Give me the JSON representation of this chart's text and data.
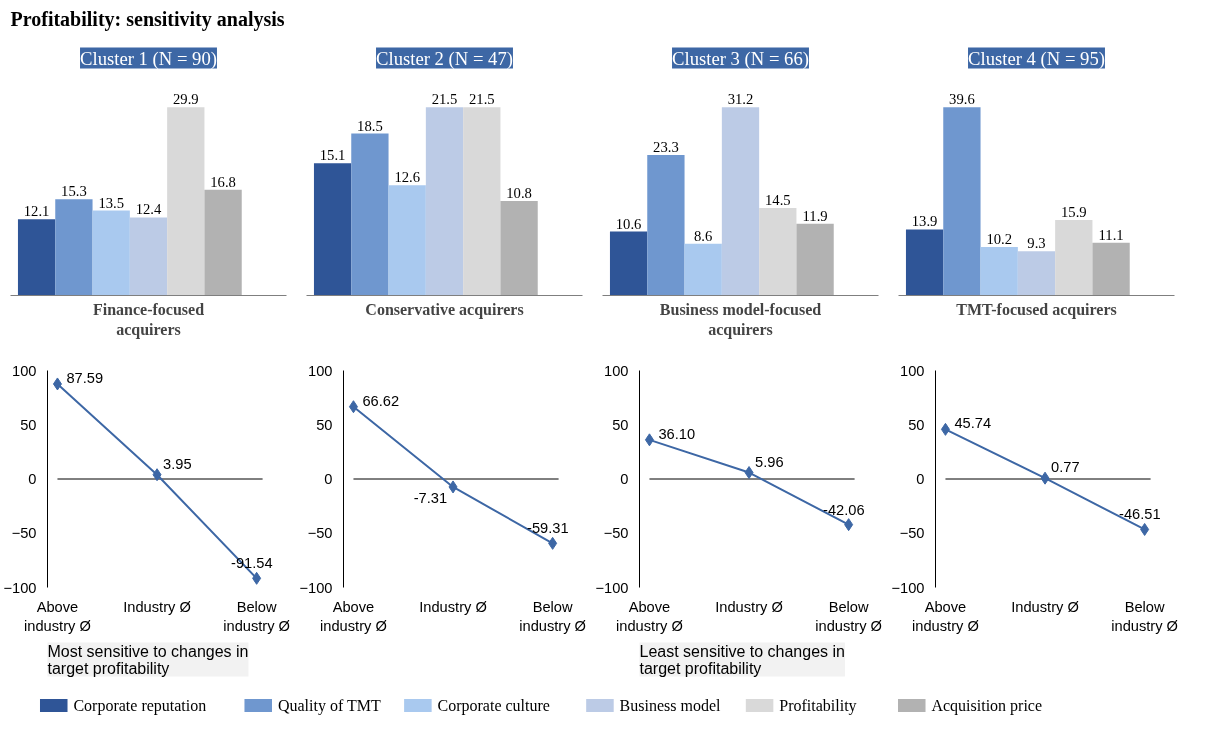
{
  "chart_data": [
    {
      "type": "other",
      "title": "Profitability: sensitivity analysis"
    },
    {
      "type": "bar",
      "title": "Cluster 1 (N = 90)",
      "xlabel": "Finance-focused acquirers",
      "categories": [
        null
      ],
      "data_labels": true,
      "legend": "bottom",
      "series": [
        {
          "name": "Corporate reputation",
          "color": "#2f5597",
          "values": [
            12.1
          ]
        },
        {
          "name": "Quality of TMT",
          "color": "#6f97cf",
          "values": [
            15.3
          ]
        },
        {
          "name": "Corporate culture",
          "color": "#a9c9ef",
          "values": [
            13.5
          ]
        },
        {
          "name": "Business model",
          "color": "#bccbe6",
          "values": [
            12.4
          ]
        },
        {
          "name": "Profitability",
          "color": "#d9d9d9",
          "values": [
            29.9
          ]
        },
        {
          "name": "Acquisition price",
          "color": "#b2b2b2",
          "values": [
            16.8
          ]
        }
      ]
    },
    {
      "type": "bar",
      "title": "Cluster 2 (N = 47)",
      "xlabel": "Conservative acquirers",
      "categories": [
        null
      ],
      "data_labels": true,
      "series": [
        {
          "color": "#2f5597",
          "values": [
            15.1
          ]
        },
        {
          "color": "#6f97cf",
          "values": [
            18.5
          ]
        },
        {
          "color": "#a9c9ef",
          "values": [
            12.6
          ]
        },
        {
          "color": "#bccbe6",
          "values": [
            21.5
          ]
        },
        {
          "color": "#d9d9d9",
          "values": [
            21.5
          ]
        },
        {
          "color": "#b2b2b2",
          "values": [
            10.8
          ]
        }
      ]
    },
    {
      "type": "bar",
      "title": "Cluster 3 (N = 66)",
      "xlabel": "Business model-focused acquirers",
      "categories": [
        null
      ],
      "data_labels": true,
      "series": [
        {
          "color": "#2f5597",
          "values": [
            10.6
          ]
        },
        {
          "color": "#6f97cf",
          "values": [
            23.3
          ]
        },
        {
          "color": "#a9c9ef",
          "values": [
            8.6
          ]
        },
        {
          "color": "#bccbe6",
          "values": [
            31.2
          ]
        },
        {
          "color": "#d9d9d9",
          "values": [
            14.5
          ]
        },
        {
          "color": "#b2b2b2",
          "values": [
            11.9
          ]
        }
      ]
    },
    {
      "type": "bar",
      "title": "Cluster 4 (N = 95)",
      "xlabel": "TMT-focused acquirers",
      "categories": [
        null
      ],
      "data_labels": true,
      "series": [
        {
          "color": "#2f5597",
          "values": [
            13.9
          ]
        },
        {
          "color": "#6f97cf",
          "values": [
            39.6
          ]
        },
        {
          "color": "#a9c9ef",
          "values": [
            10.2
          ]
        },
        {
          "color": "#bccbe6",
          "values": [
            9.3
          ]
        },
        {
          "color": "#d9d9d9",
          "values": [
            15.9
          ]
        },
        {
          "color": "#b2b2b2",
          "values": [
            11.1
          ]
        }
      ]
    },
    {
      "type": "line",
      "categories": [
        "Above industry Ø",
        "Industry Ø",
        "Below industry Ø"
      ],
      "values": [
        87.59,
        3.95,
        -91.54
      ],
      "value_labels": [
        "87.59",
        "3.95",
        "-91.54"
      ],
      "color": "#3d67a5",
      "ylim": [
        -100,
        100
      ],
      "yticks": [
        -100,
        -50,
        0,
        50,
        100
      ],
      "marker": "diamond",
      "ref_lines": [
        {
          "axis": "y",
          "value": 0,
          "color": "#000000"
        }
      ],
      "annotations": [
        "Most sensitive to changes in target profitability"
      ]
    },
    {
      "type": "line",
      "categories": [
        "Above industry Ø",
        "Industry Ø",
        "Below industry Ø"
      ],
      "values": [
        66.62,
        -7.31,
        -59.31
      ],
      "value_labels": [
        "66.62",
        "-7.31",
        "-59.31"
      ],
      "color": "#3d67a5",
      "ylim": [
        -100,
        100
      ],
      "yticks": [
        -100,
        -50,
        0,
        50,
        100
      ],
      "marker": "diamond",
      "ref_lines": [
        {
          "axis": "y",
          "value": 0,
          "color": "#000000"
        }
      ]
    },
    {
      "type": "line",
      "categories": [
        "Above industry Ø",
        "Industry Ø",
        "Below industry Ø"
      ],
      "values": [
        36.1,
        5.96,
        -42.06
      ],
      "value_labels": [
        "36.10",
        "5.96",
        "-42.06"
      ],
      "color": "#3d67a5",
      "ylim": [
        -100,
        100
      ],
      "yticks": [
        -100,
        -50,
        0,
        50,
        100
      ],
      "marker": "diamond",
      "ref_lines": [
        {
          "axis": "y",
          "value": 0,
          "color": "#000000"
        }
      ],
      "annotations": [
        "Least sensitive to changes in target profitability"
      ]
    },
    {
      "type": "line",
      "categories": [
        "Above industry Ø",
        "Industry Ø",
        "Below industry Ø"
      ],
      "values": [
        45.74,
        0.77,
        -46.51
      ],
      "value_labels": [
        "45.74",
        "0.77",
        "-46.51"
      ],
      "color": "#3d67a5",
      "ylim": [
        -100,
        100
      ],
      "yticks": [
        -100,
        -50,
        0,
        50,
        100
      ],
      "marker": "diamond",
      "ref_lines": [
        {
          "axis": "y",
          "value": 0,
          "color": "#000000"
        }
      ]
    }
  ]
}
